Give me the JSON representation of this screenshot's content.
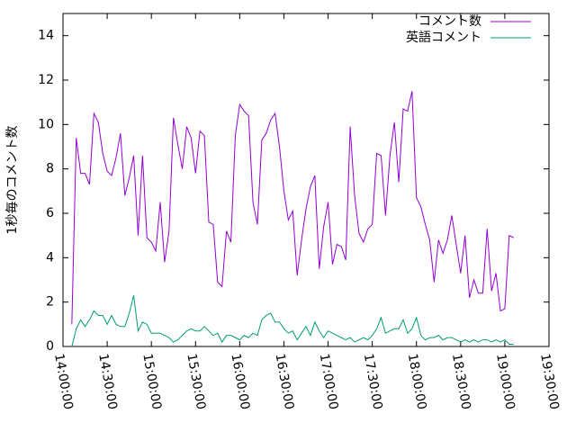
{
  "chart_data": {
    "type": "line",
    "ylabel": "1秒毎のコメント数",
    "x": [
      "14:06:00",
      "14:09:00",
      "14:12:00",
      "14:15:00",
      "14:18:00",
      "14:21:00",
      "14:24:00",
      "14:27:00",
      "14:30:00",
      "14:33:00",
      "14:36:00",
      "14:39:00",
      "14:42:00",
      "14:45:00",
      "14:48:00",
      "14:51:00",
      "14:54:00",
      "14:57:00",
      "15:00:00",
      "15:03:00",
      "15:06:00",
      "15:09:00",
      "15:12:00",
      "15:15:00",
      "15:18:00",
      "15:21:00",
      "15:24:00",
      "15:27:00",
      "15:30:00",
      "15:33:00",
      "15:36:00",
      "15:39:00",
      "15:42:00",
      "15:45:00",
      "15:48:00",
      "15:51:00",
      "15:54:00",
      "15:57:00",
      "16:00:00",
      "16:03:00",
      "16:06:00",
      "16:09:00",
      "16:12:00",
      "16:15:00",
      "16:18:00",
      "16:21:00",
      "16:24:00",
      "16:27:00",
      "16:30:00",
      "16:33:00",
      "16:36:00",
      "16:39:00",
      "16:42:00",
      "16:45:00",
      "16:48:00",
      "16:51:00",
      "16:54:00",
      "16:57:00",
      "17:00:00",
      "17:03:00",
      "17:06:00",
      "17:09:00",
      "17:12:00",
      "17:15:00",
      "17:18:00",
      "17:21:00",
      "17:24:00",
      "17:27:00",
      "17:30:00",
      "17:33:00",
      "17:36:00",
      "17:39:00",
      "17:42:00",
      "17:45:00",
      "17:48:00",
      "17:51:00",
      "17:54:00",
      "17:57:00",
      "18:00:00",
      "18:03:00",
      "18:06:00",
      "18:09:00",
      "18:12:00",
      "18:15:00",
      "18:18:00",
      "18:21:00",
      "18:24:00",
      "18:27:00",
      "18:30:00",
      "18:33:00",
      "18:36:00",
      "18:39:00",
      "18:42:00",
      "18:45:00",
      "18:48:00",
      "18:51:00",
      "18:54:00",
      "18:57:00",
      "19:00:00",
      "19:03:00",
      "19:06:00"
    ],
    "series": [
      {
        "name": "コメント数",
        "color": "#9400d3",
        "values": [
          1.0,
          9.4,
          7.8,
          7.8,
          7.3,
          10.5,
          10.1,
          8.7,
          7.9,
          7.7,
          8.5,
          9.6,
          6.8,
          7.6,
          8.6,
          5.0,
          8.6,
          4.9,
          4.7,
          4.3,
          6.5,
          3.8,
          5.2,
          10.3,
          9.1,
          8.0,
          9.9,
          9.4,
          7.8,
          9.7,
          9.5,
          5.6,
          5.5,
          2.9,
          2.7,
          5.2,
          4.7,
          9.5,
          10.9,
          10.6,
          10.4,
          6.5,
          5.5,
          9.3,
          9.6,
          10.2,
          10.5,
          9.0,
          7.0,
          5.7,
          6.1,
          3.2,
          4.8,
          6.2,
          7.2,
          7.7,
          3.5,
          5.4,
          6.5,
          3.7,
          4.6,
          4.5,
          3.9,
          9.9,
          6.8,
          5.1,
          4.7,
          5.3,
          5.5,
          8.7,
          8.6,
          5.9,
          8.6,
          10.1,
          7.4,
          10.7,
          10.6,
          11.5,
          6.7,
          6.3,
          5.5,
          4.8,
          2.9,
          4.8,
          4.2,
          4.8,
          5.9,
          4.6,
          3.3,
          5.0,
          2.2,
          3.0,
          2.4,
          2.4,
          5.3,
          2.5,
          3.3,
          1.6,
          1.7,
          5.0,
          4.9
        ]
      },
      {
        "name": "英語コメント",
        "color": "#009e73",
        "values": [
          0.0,
          0.8,
          1.2,
          0.9,
          1.2,
          1.6,
          1.4,
          1.4,
          1.0,
          1.4,
          1.0,
          0.9,
          0.9,
          1.5,
          2.3,
          0.7,
          1.1,
          1.0,
          0.6,
          0.6,
          0.6,
          0.5,
          0.4,
          0.2,
          0.3,
          0.5,
          0.7,
          0.8,
          0.7,
          0.7,
          0.9,
          0.7,
          0.5,
          0.6,
          0.2,
          0.5,
          0.5,
          0.4,
          0.3,
          0.5,
          0.4,
          0.6,
          0.5,
          1.2,
          1.4,
          1.5,
          1.1,
          1.1,
          0.8,
          0.6,
          0.7,
          0.3,
          0.6,
          0.9,
          0.5,
          1.1,
          0.7,
          0.4,
          0.7,
          0.6,
          0.5,
          0.4,
          0.3,
          0.4,
          0.2,
          0.3,
          0.4,
          0.3,
          0.5,
          0.8,
          1.3,
          0.6,
          0.7,
          0.8,
          0.8,
          1.2,
          0.6,
          0.8,
          1.3,
          0.5,
          0.3,
          0.4,
          0.4,
          0.5,
          0.3,
          0.4,
          0.4,
          0.3,
          0.2,
          0.3,
          0.2,
          0.3,
          0.2,
          0.3,
          0.3,
          0.2,
          0.3,
          0.2,
          0.3,
          0.1,
          0.1
        ]
      }
    ],
    "xlim": [
      "14:00:00",
      "19:30:00"
    ],
    "xticks": [
      "14:00:00",
      "14:30:00",
      "15:00:00",
      "15:30:00",
      "16:00:00",
      "16:30:00",
      "17:00:00",
      "17:30:00",
      "18:00:00",
      "18:30:00",
      "19:00:00",
      "19:30:00"
    ],
    "ylim": [
      0,
      15
    ],
    "yticks": [
      0,
      2,
      4,
      6,
      8,
      10,
      12,
      14
    ],
    "legend": "top-right"
  }
}
